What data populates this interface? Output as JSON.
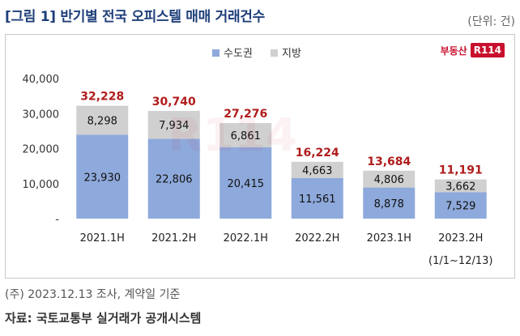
{
  "title": "[그림 1] 반기별 전국 오피스텔 매매 거래건수",
  "unit": "(단위: 건)",
  "brand": {
    "text": "부동산",
    "box": "R114"
  },
  "footnote": "(주) 2023.12.13 조사, 계약일 기준",
  "source": "자료: 국토교통부 실거래가 공개시스템",
  "chart_data": {
    "type": "bar",
    "stacked": true,
    "categories": [
      "2021.1H",
      "2021.2H",
      "2022.1H",
      "2022.2H",
      "2023.1H",
      "2023.2H"
    ],
    "category_sublabels": [
      "",
      "",
      "",
      "",
      "",
      "(1/1~12/13)"
    ],
    "series": [
      {
        "name": "수도권",
        "values": [
          23930,
          22806,
          20415,
          11561,
          8878,
          7529
        ],
        "color": "#8ea9db"
      },
      {
        "name": "지방",
        "values": [
          8298,
          7934,
          6861,
          4663,
          4806,
          3662
        ],
        "color": "#d0d0d0"
      }
    ],
    "totals": [
      32228,
      30740,
      27276,
      16224,
      13684,
      11191
    ],
    "total_labels": [
      "32,228",
      "30,740",
      "27,276",
      "16,224",
      "13,684",
      "11,191"
    ],
    "series_labels": [
      [
        "23,930",
        "22,806",
        "20,415",
        "11,561",
        "8,878",
        "7,529"
      ],
      [
        "8,298",
        "7,934",
        "6,861",
        "4,663",
        "4,806",
        "3,662"
      ]
    ],
    "total_color": "#b01c1c",
    "y_ticks": [
      "-",
      "10,000",
      "20,000",
      "30,000",
      "40,000"
    ],
    "ylim": [
      0,
      40000
    ],
    "legend_position": "top-center",
    "grid": false
  }
}
